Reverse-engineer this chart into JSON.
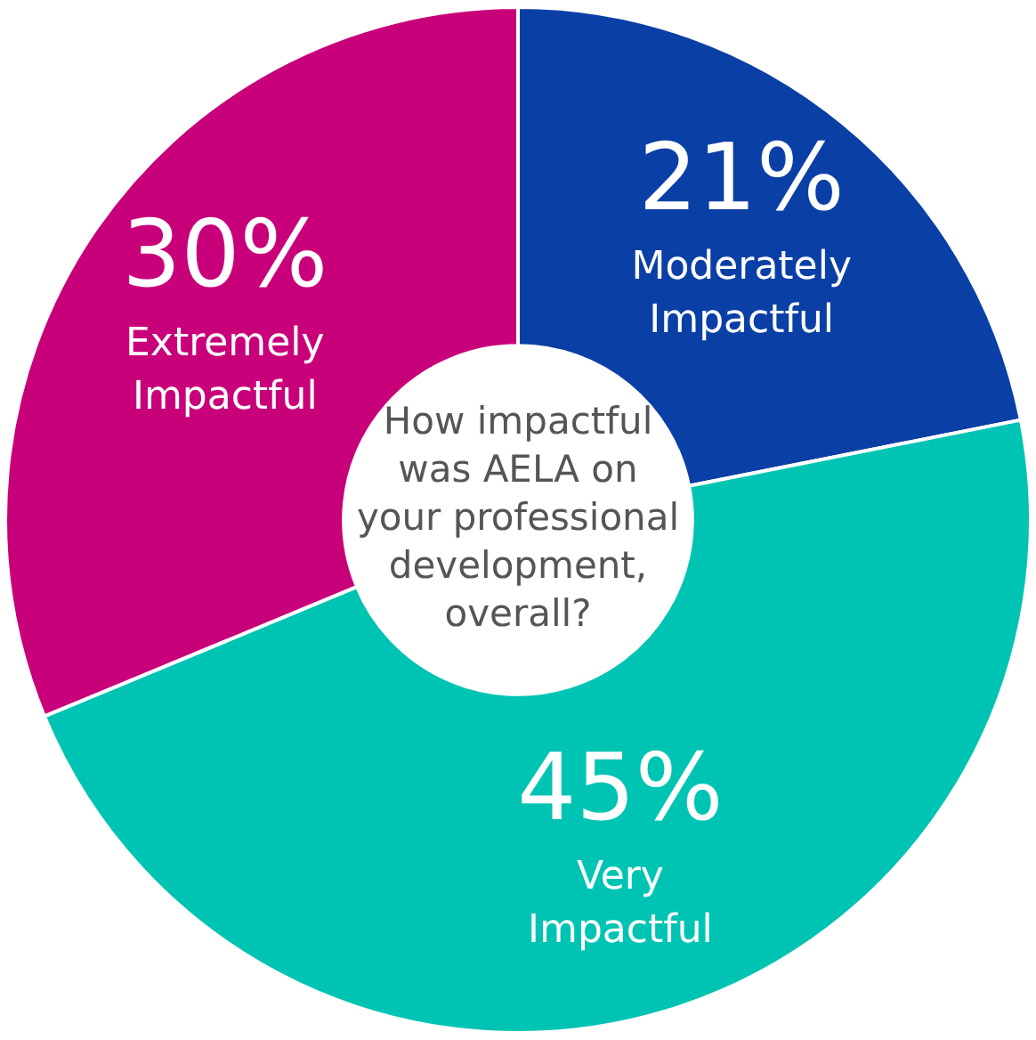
{
  "chart_data": {
    "type": "donut",
    "title": "How impactful was AELA on your professional development, overall?",
    "categories": [
      "Moderately Impactful",
      "Very Impactful",
      "Extremely Impactful"
    ],
    "values": [
      21,
      45,
      30
    ],
    "colors": [
      "#0a3fa6",
      "#00c4b3",
      "#c8007a"
    ],
    "value_labels": [
      "21%",
      "45%",
      "30%"
    ],
    "legend": false
  }
}
